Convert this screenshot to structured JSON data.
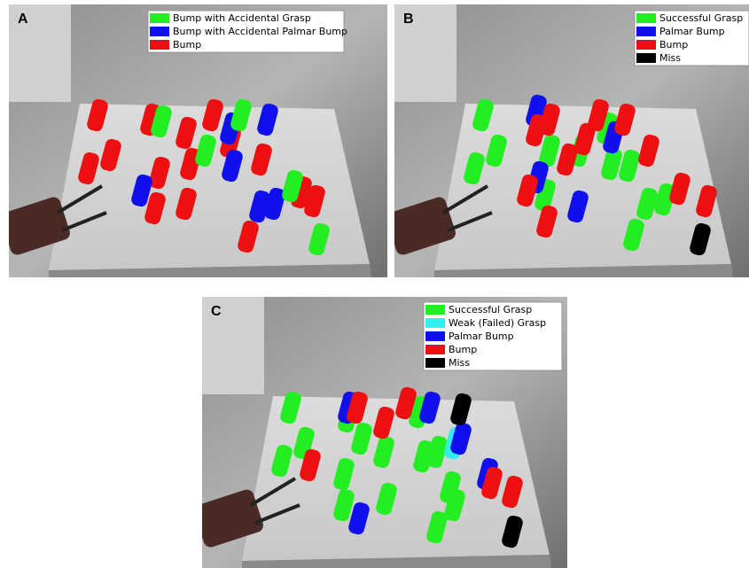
{
  "panels": [
    {
      "label": "A",
      "legend": [
        {
          "label": "Bump with Accidental Grasp",
          "color": "#22ee22"
        },
        {
          "label": "Bump with Accidental Palmar Bump",
          "color": "#1010ee"
        },
        {
          "label": "Bump",
          "color": "#ee1010"
        }
      ]
    },
    {
      "label": "B",
      "legend": [
        {
          "label": "Successful Grasp",
          "color": "#22ee22"
        },
        {
          "label": "Palmar Bump",
          "color": "#1010ee"
        },
        {
          "label": "Bump",
          "color": "#ee1010"
        },
        {
          "label": "Miss",
          "color": "#000000"
        }
      ]
    },
    {
      "label": "C",
      "legend": [
        {
          "label": "Successful Grasp",
          "color": "#22ee22"
        },
        {
          "label": "Weak (Failed) Grasp",
          "color": "#33eeee"
        },
        {
          "label": "Palmar Bump",
          "color": "#1010ee"
        },
        {
          "label": "Bump",
          "color": "#ee1010"
        },
        {
          "label": "Miss",
          "color": "#000000"
        }
      ]
    }
  ]
}
